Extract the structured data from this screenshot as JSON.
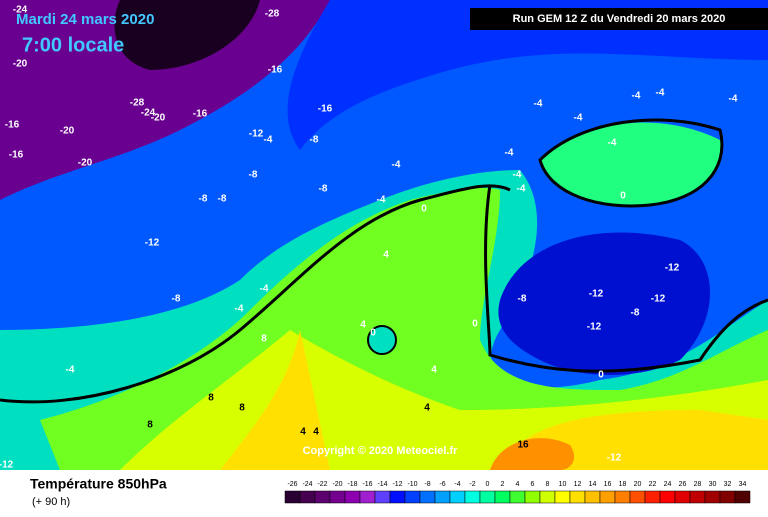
{
  "header": {
    "date": "Mardi 24 mars 2020",
    "time": "7:00 locale",
    "run": "Run GEM 12 Z du Vendredi 20 mars 2020"
  },
  "copyright": "Copyright © 2020 Meteociel.fr",
  "footer": {
    "title": "Température 850hPa",
    "lead": "(+ 90 h)"
  },
  "scale": {
    "labels": [
      -26,
      -24,
      -22,
      -20,
      -18,
      -16,
      -14,
      -12,
      -10,
      -8,
      -6,
      -4,
      -2,
      0,
      2,
      4,
      6,
      8,
      10,
      12,
      14,
      16,
      18,
      20,
      22,
      24,
      26,
      28,
      30,
      32,
      34
    ],
    "colors": [
      "#2a0033",
      "#45004f",
      "#5c0070",
      "#74008f",
      "#8c00b0",
      "#a020d0",
      "#6040ff",
      "#0010ff",
      "#0040ff",
      "#0070ff",
      "#00a0ff",
      "#00d0ff",
      "#00ffe0",
      "#00ffa0",
      "#00ff60",
      "#40ff30",
      "#90ff00",
      "#d0ff00",
      "#ffff00",
      "#ffe000",
      "#ffc000",
      "#ffa000",
      "#ff8000",
      "#ff5000",
      "#ff2000",
      "#ff0000",
      "#e00000",
      "#c00000",
      "#a00000",
      "#800000",
      "#500000"
    ]
  },
  "isotherm_labels": [
    -24,
    -20,
    -16,
    -16,
    -20,
    -20,
    -28,
    -24,
    -20,
    -16,
    -16,
    -28,
    -16,
    -12,
    -4,
    -8,
    -8,
    -8,
    -8,
    -8,
    -12,
    -8,
    -4,
    -4,
    -4,
    -4,
    -4,
    -4,
    -4,
    -4,
    -4,
    -4,
    -4,
    -4,
    -4,
    -4,
    0,
    0,
    4,
    4,
    0,
    0,
    -12,
    -12,
    -12,
    -8,
    -12,
    -8,
    0,
    8,
    8,
    8,
    16,
    -12,
    -12,
    4,
    4,
    4,
    4,
    8
  ]
}
